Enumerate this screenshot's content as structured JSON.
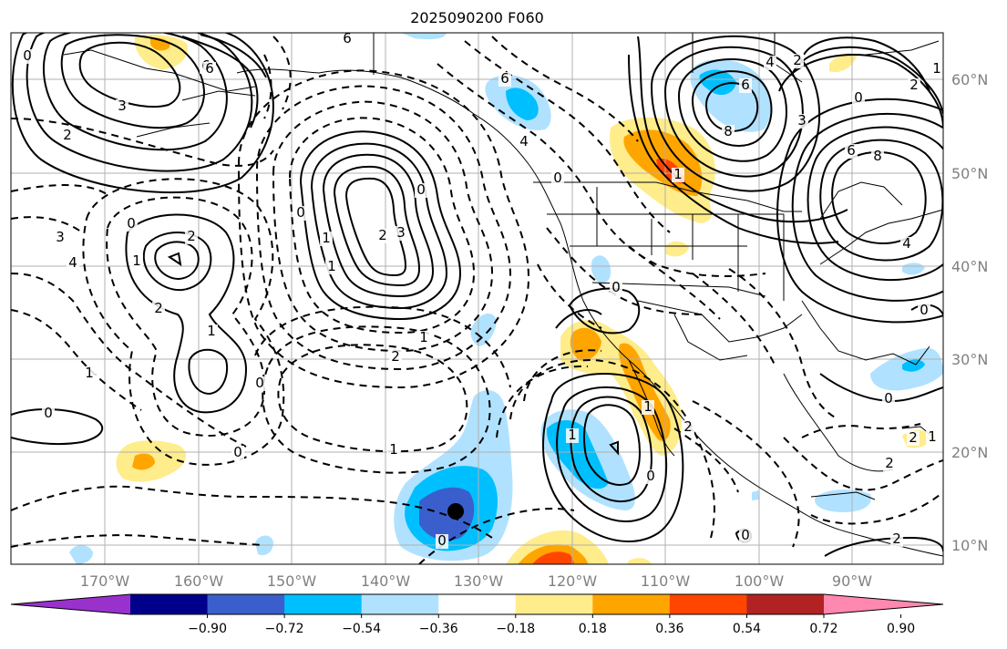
{
  "title": "2025090200 F060",
  "lon_ticks": [
    "170°W",
    "160°W",
    "150°W",
    "140°W",
    "130°W",
    "120°W",
    "110°W",
    "100°W",
    "90°W"
  ],
  "lat_ticks": [
    "60°N",
    "50°N",
    "40°N",
    "30°N",
    "20°N",
    "10°N"
  ],
  "colorbar": {
    "colors": [
      "#9932cc",
      "#00008b",
      "#3a5fcd",
      "#00bfff",
      "#b0e2ff",
      "#ffffff",
      "#ffec8b",
      "#ffa500",
      "#ff4500",
      "#b22222",
      "#ff88b0"
    ],
    "labels": [
      "−0.90",
      "−0.72",
      "−0.54",
      "−0.36",
      "−0.18",
      "0.18",
      "0.36",
      "0.54",
      "0.72",
      "0.90"
    ]
  },
  "contour_labels": [
    "6",
    "6",
    "3",
    "2",
    "0",
    "3",
    "1",
    "1",
    "2",
    "0",
    "0",
    "1",
    "2",
    "3",
    "4",
    "0",
    "1",
    "2",
    "0",
    "1",
    "0",
    "0",
    "1",
    "1",
    "2",
    "0",
    "1",
    "6",
    "4",
    "0",
    "6",
    "8",
    "6",
    "3",
    "0",
    "8",
    "4",
    "6",
    "4",
    "2",
    "0",
    "2",
    "1",
    "2",
    "2",
    "1",
    "1",
    "0",
    "0",
    "0",
    "0",
    "2",
    "1",
    "2"
  ]
}
